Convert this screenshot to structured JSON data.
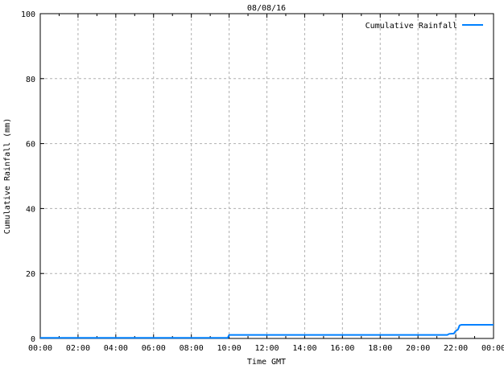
{
  "chart_data": {
    "type": "line",
    "title": "08/08/16",
    "xlabel": "Time GMT",
    "ylabel": "Cumulative Rainfall (mm)",
    "xlim": [
      0,
      24
    ],
    "ylim": [
      0,
      100
    ],
    "grid": true,
    "grid_color": "#b0b0b0",
    "axis_color": "#000000",
    "x_major_ticks": [
      0,
      2,
      4,
      6,
      8,
      10,
      12,
      14,
      16,
      18,
      20,
      22,
      24
    ],
    "x_tick_labels": [
      "00:00",
      "02:00",
      "04:00",
      "06:00",
      "08:00",
      "10:00",
      "12:00",
      "14:00",
      "16:00",
      "18:00",
      "20:00",
      "22:00",
      "00:00"
    ],
    "x_minor_ticks": [
      1,
      3,
      5,
      7,
      9,
      11,
      13,
      15,
      17,
      19,
      21,
      23
    ],
    "y_ticks": [
      0,
      20,
      40,
      60,
      80,
      100
    ],
    "y_tick_labels": [
      "0",
      "20",
      "40",
      "60",
      "80",
      "100"
    ],
    "legend": [
      {
        "name": "Cumulative Rainfall",
        "color": "#0080ff"
      }
    ],
    "legend_position": "top-right-inside",
    "series": [
      {
        "name": "Cumulative Rainfall",
        "color": "#0080ff",
        "points": [
          [
            0.0,
            0.2
          ],
          [
            9.93,
            0.2
          ],
          [
            10.0,
            1.1
          ],
          [
            21.55,
            1.1
          ],
          [
            21.65,
            1.4
          ],
          [
            21.9,
            1.5
          ],
          [
            21.98,
            2.2
          ],
          [
            22.05,
            2.5
          ],
          [
            22.12,
            2.8
          ],
          [
            22.2,
            4.0
          ],
          [
            22.3,
            4.2
          ],
          [
            24.0,
            4.2
          ]
        ]
      }
    ]
  }
}
